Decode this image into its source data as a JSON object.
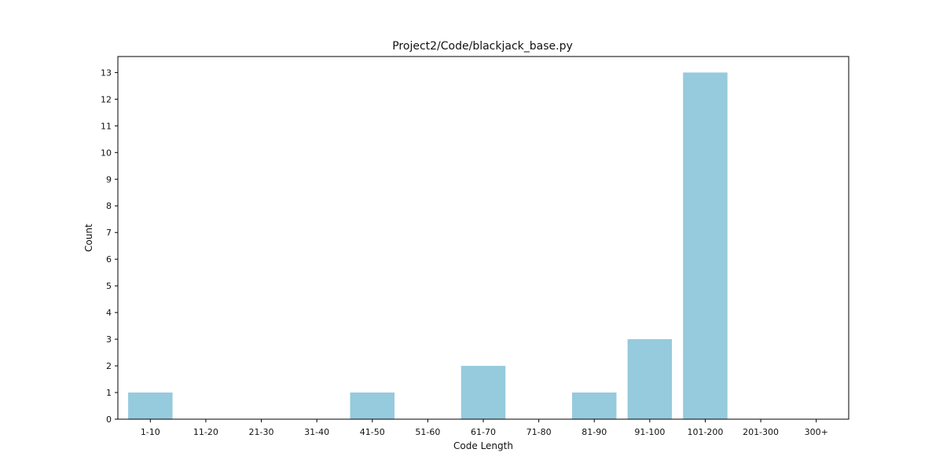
{
  "chart_data": {
    "type": "bar",
    "title": "Project2/Code/blackjack_base.py",
    "xlabel": "Code Length",
    "ylabel": "Count",
    "categories": [
      "1-10",
      "11-20",
      "21-30",
      "31-40",
      "41-50",
      "51-60",
      "61-70",
      "71-80",
      "81-90",
      "91-100",
      "101-200",
      "201-300",
      "300+"
    ],
    "values": [
      1,
      0,
      0,
      0,
      1,
      0,
      2,
      0,
      1,
      3,
      13,
      0,
      0
    ],
    "ylim": [
      0,
      13.6
    ],
    "yticks": [
      0,
      1,
      2,
      3,
      4,
      5,
      6,
      7,
      8,
      9,
      10,
      11,
      12,
      13
    ],
    "bar_color": "#96cadd",
    "grid": false,
    "legend": "none"
  }
}
